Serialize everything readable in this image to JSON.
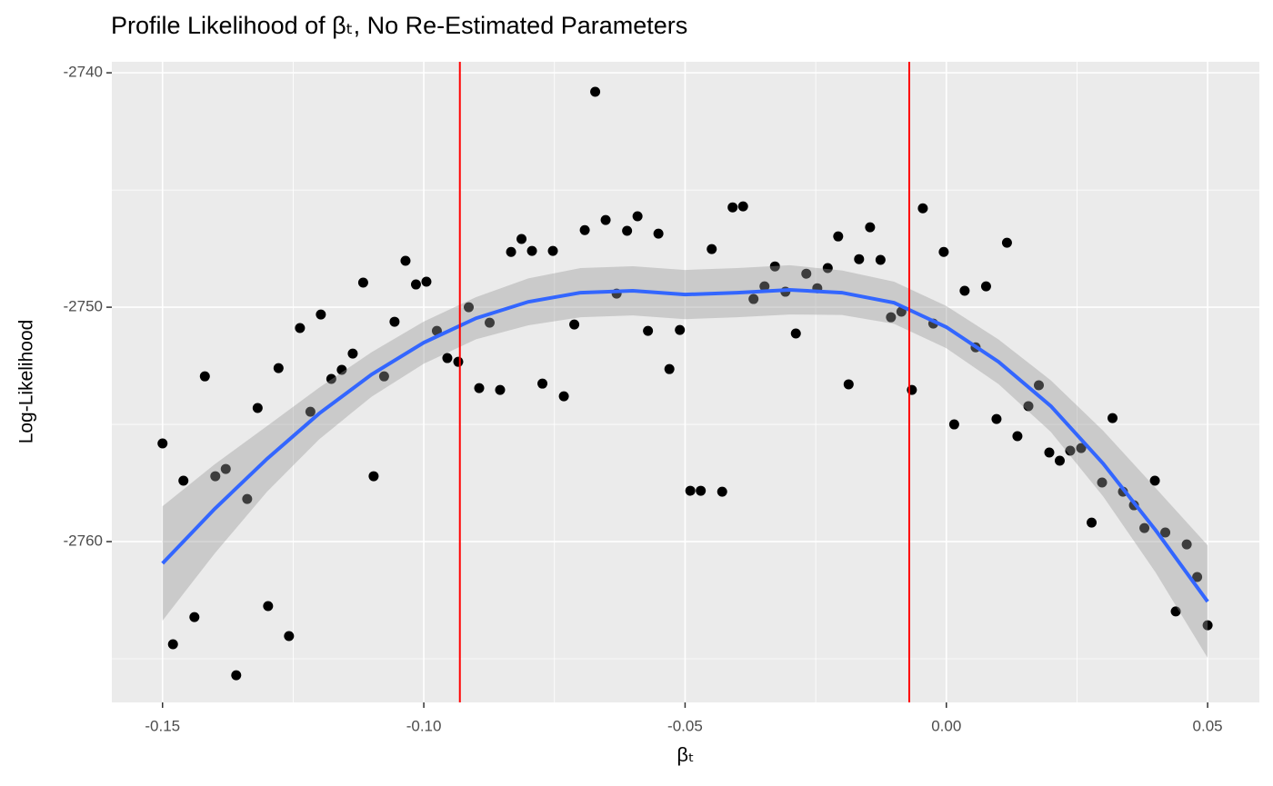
{
  "chart_data": {
    "type": "scatter",
    "title": "Profile Likelihood of βₜ, No Re-Estimated Parameters",
    "x_label": "βₜ",
    "y_label": "Log-Likelihood",
    "x": [
      -0.15,
      -0.148,
      -0.146,
      -0.1439,
      -0.1419,
      -0.1399,
      -0.1379,
      -0.1359,
      -0.1338,
      -0.1318,
      -0.1298,
      -0.1278,
      -0.1258,
      -0.1237,
      -0.1217,
      -0.1197,
      -0.1177,
      -0.1157,
      -0.1136,
      -0.1116,
      -0.1096,
      -0.1076,
      -0.1056,
      -0.1035,
      -0.1015,
      -0.0995,
      -0.0975,
      -0.0955,
      -0.0934,
      -0.0914,
      -0.0894,
      -0.0874,
      -0.0854,
      -0.0833,
      -0.0813,
      -0.0793,
      -0.0773,
      -0.0753,
      -0.0732,
      -0.0712,
      -0.0692,
      -0.0672,
      -0.0652,
      -0.0631,
      -0.0611,
      -0.0591,
      -0.0571,
      -0.0551,
      -0.053,
      -0.051,
      -0.049,
      -0.047,
      -0.0449,
      -0.0429,
      -0.0409,
      -0.0389,
      -0.0369,
      -0.0348,
      -0.0328,
      -0.0308,
      -0.0288,
      -0.0268,
      -0.0247,
      -0.0227,
      -0.0207,
      -0.0187,
      -0.0167,
      -0.0146,
      -0.0126,
      -0.0106,
      -0.0086,
      -0.0066,
      -0.0045,
      -0.0025,
      -0.0005,
      0.0015,
      0.0035,
      0.0056,
      0.0076,
      0.0096,
      0.0116,
      0.0136,
      0.0157,
      0.0177,
      0.0197,
      0.0217,
      0.0237,
      0.0258,
      0.0278,
      0.0298,
      0.0318,
      0.0338,
      0.0359,
      0.0379,
      0.0399,
      0.0419,
      0.0439,
      0.046,
      0.048,
      0.05
    ],
    "values": [
      -2755.81,
      -2764.38,
      -2757.4,
      -2763.22,
      -2752.95,
      -2757.21,
      -2756.9,
      -2765.7,
      -2758.18,
      -2754.3,
      -2762.75,
      -2752.6,
      -2764.03,
      -2750.89,
      -2754.46,
      -2750.31,
      -2753.06,
      -2752.67,
      -2751.98,
      -2748.95,
      -2757.21,
      -2752.95,
      -2750.62,
      -2748.02,
      -2749.03,
      -2748.91,
      -2751.01,
      -2752.17,
      -2752.33,
      -2750.0,
      -2753.45,
      -2750.66,
      -2753.53,
      -2747.64,
      -2747.09,
      -2747.6,
      -2753.26,
      -2747.6,
      -2753.8,
      -2750.74,
      -2746.71,
      -2740.81,
      -2746.28,
      -2749.42,
      -2746.74,
      -2746.12,
      -2751.01,
      -2746.86,
      -2752.64,
      -2750.97,
      -2757.83,
      -2757.83,
      -2747.52,
      -2757.87,
      -2745.74,
      -2745.7,
      -2749.65,
      -2749.11,
      -2748.26,
      -2749.34,
      -2751.12,
      -2748.57,
      -2749.19,
      -2748.33,
      -2746.98,
      -2753.29,
      -2747.95,
      -2746.59,
      -2747.98,
      -2750.43,
      -2750.19,
      -2753.53,
      -2745.78,
      -2750.7,
      -2747.64,
      -2755.0,
      -2749.3,
      -2751.71,
      -2749.11,
      -2754.77,
      -2747.25,
      -2755.5,
      -2754.22,
      -2753.33,
      -2756.2,
      -2756.55,
      -2756.12,
      -2756.01,
      -2759.19,
      -2757.48,
      -2754.73,
      -2757.87,
      -2758.45,
      -2759.42,
      -2757.4,
      -2759.61,
      -2762.98,
      -2760.12,
      -2761.51,
      -2763.57
    ],
    "color": "#000000",
    "smooth": {
      "color": "#3366FF",
      "band_color": "#999999",
      "x": [
        -0.15,
        -0.14,
        -0.13,
        -0.12,
        -0.11,
        -0.1,
        -0.09,
        -0.08,
        -0.07,
        -0.06,
        -0.05,
        -0.04,
        -0.03,
        -0.02,
        -0.01,
        0.0,
        0.01,
        0.02,
        0.03,
        0.04,
        0.05
      ],
      "values": [
        -2760.93,
        -2758.6,
        -2756.47,
        -2754.53,
        -2752.87,
        -2751.51,
        -2750.47,
        -2749.77,
        -2749.38,
        -2749.3,
        -2749.46,
        -2749.38,
        -2749.26,
        -2749.38,
        -2749.81,
        -2750.85,
        -2752.33,
        -2754.22,
        -2756.67,
        -2759.5,
        -2762.56
      ],
      "lower": [
        -2763.37,
        -2760.5,
        -2757.87,
        -2755.63,
        -2753.82,
        -2752.41,
        -2751.37,
        -2750.77,
        -2750.43,
        -2750.35,
        -2750.51,
        -2750.43,
        -2750.31,
        -2750.33,
        -2750.71,
        -2751.75,
        -2753.28,
        -2755.32,
        -2758.07,
        -2761.3,
        -2764.96
      ],
      "upper": [
        -2758.49,
        -2756.7,
        -2755.07,
        -2753.43,
        -2751.92,
        -2750.61,
        -2749.57,
        -2748.77,
        -2748.33,
        -2748.25,
        -2748.41,
        -2748.33,
        -2748.21,
        -2748.43,
        -2748.91,
        -2749.95,
        -2751.38,
        -2753.12,
        -2755.27,
        -2757.7,
        -2760.16
      ]
    },
    "vlines": {
      "values": [
        -0.0931,
        -0.0071
      ],
      "color": "#FF0000"
    },
    "xlim": [
      -0.1597,
      0.0599
    ],
    "ylim": [
      -2766.86,
      -2739.53
    ],
    "xticks": [
      {
        "value": -0.15,
        "label": "-0.15"
      },
      {
        "value": -0.1,
        "label": "-0.10"
      },
      {
        "value": -0.05,
        "label": "-0.05"
      },
      {
        "value": 0,
        "label": "0.00"
      },
      {
        "value": 0.05,
        "label": "0.05"
      }
    ],
    "yticks": [
      -2760,
      -2750,
      -2740
    ],
    "x_minor_ticks": [
      -0.125,
      -0.075,
      -0.025,
      0.025
    ],
    "y_minor_ticks": [
      -2765,
      -2755,
      -2745
    ],
    "grid": true,
    "background": "#EBEBEB"
  }
}
